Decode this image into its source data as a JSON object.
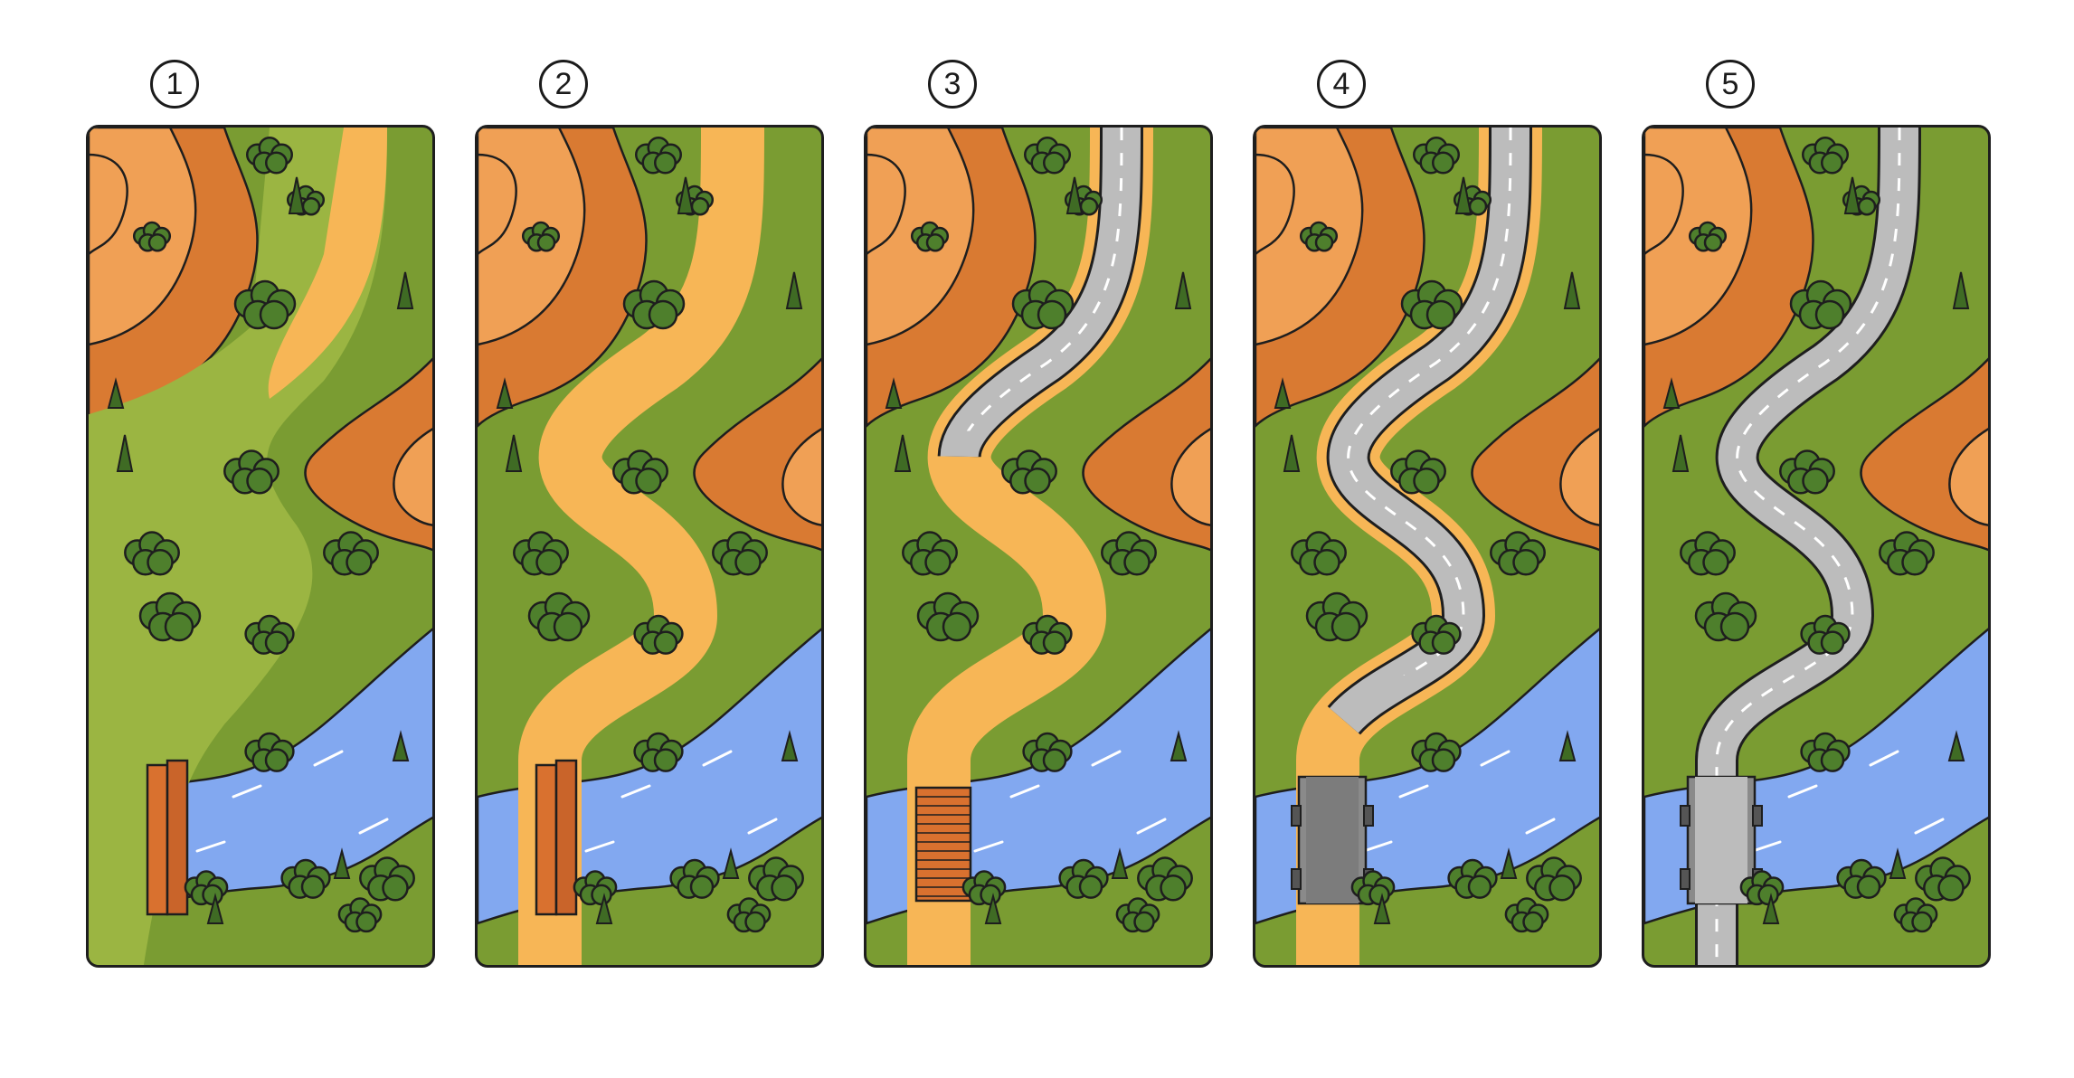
{
  "steps": [
    {
      "label": "1",
      "path": "dirt",
      "road": "none",
      "bridge": "logs"
    },
    {
      "label": "2",
      "path": "dirt-wide",
      "road": "none",
      "bridge": "logs"
    },
    {
      "label": "3",
      "path": "dirt-wide",
      "road": "partial",
      "bridge": "planks"
    },
    {
      "label": "4",
      "path": "dirt-wide",
      "road": "most",
      "bridge": "concrete"
    },
    {
      "label": "5",
      "path": "none",
      "road": "full",
      "bridge": "road"
    }
  ],
  "colors": {
    "grass": "#7a9c32",
    "dark_grass": "#6a8a2a",
    "clay_dark": "#d97a32",
    "clay_light": "#f0a055",
    "dirt": "#f7b656",
    "river": "#82a8f0",
    "tree": "#4e7f2c",
    "road": "#bcbcbc",
    "wood": "#d9712f",
    "outline": "#1e1e1e"
  }
}
